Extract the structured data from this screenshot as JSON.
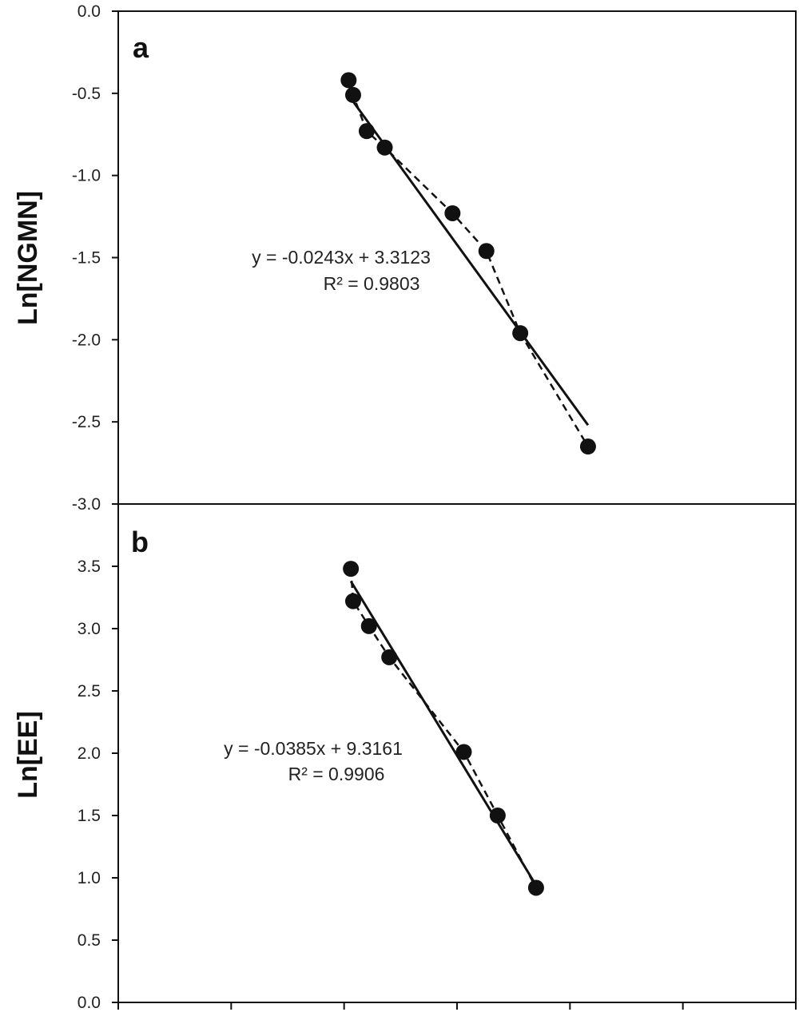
{
  "chart_data": [
    {
      "type": "scatter",
      "panel_label": "a",
      "ylabel": "Ln[NGMN]",
      "ylim": [
        -3.0,
        0.0
      ],
      "yticks": [
        "0.0",
        "-0.5",
        "-1.0",
        "-1.5",
        "-2.0",
        "-2.5",
        "-3.0"
      ],
      "ytick_values": [
        0.0,
        -0.5,
        -1.0,
        -1.5,
        -2.0,
        -2.5,
        -3.0
      ],
      "xticks": [
        "",
        "",
        "",
        "",
        "",
        "",
        ""
      ],
      "x": [
        3.02,
        3.04,
        3.1,
        3.18,
        3.48,
        3.63,
        3.78,
        4.08
      ],
      "y": [
        -0.42,
        -0.51,
        -0.73,
        -0.83,
        -1.23,
        -1.46,
        -1.96,
        -2.65
      ],
      "fit_line": {
        "x": [
          3.04,
          4.08
        ],
        "y": [
          -0.55,
          -2.52
        ]
      },
      "equation": "y = -0.0243x + 3.3123",
      "r_squared": "R² = 0.9803"
    },
    {
      "type": "scatter",
      "panel_label": "b",
      "ylabel": "Ln[EE]",
      "ylim": [
        0.0,
        4.0
      ],
      "yticks": [
        "3.5",
        "3.0",
        "2.5",
        "2.0",
        "1.5",
        "1.0",
        "0.5",
        "0.0"
      ],
      "ytick_values": [
        3.5,
        3.0,
        2.5,
        2.0,
        1.5,
        1.0,
        0.5,
        0.0
      ],
      "xticks": [
        "",
        "",
        "",
        "",
        "",
        "",
        ""
      ],
      "x": [
        3.03,
        3.04,
        3.11,
        3.2,
        3.53,
        3.68,
        3.85
      ],
      "y": [
        3.48,
        3.22,
        3.02,
        2.77,
        2.01,
        1.5,
        0.92
      ],
      "fit_line": {
        "x": [
          3.03,
          3.85
        ],
        "y": [
          3.38,
          0.94
        ]
      },
      "equation": "y = -0.0385x + 9.3161",
      "r_squared": "R² = 0.9906"
    }
  ]
}
